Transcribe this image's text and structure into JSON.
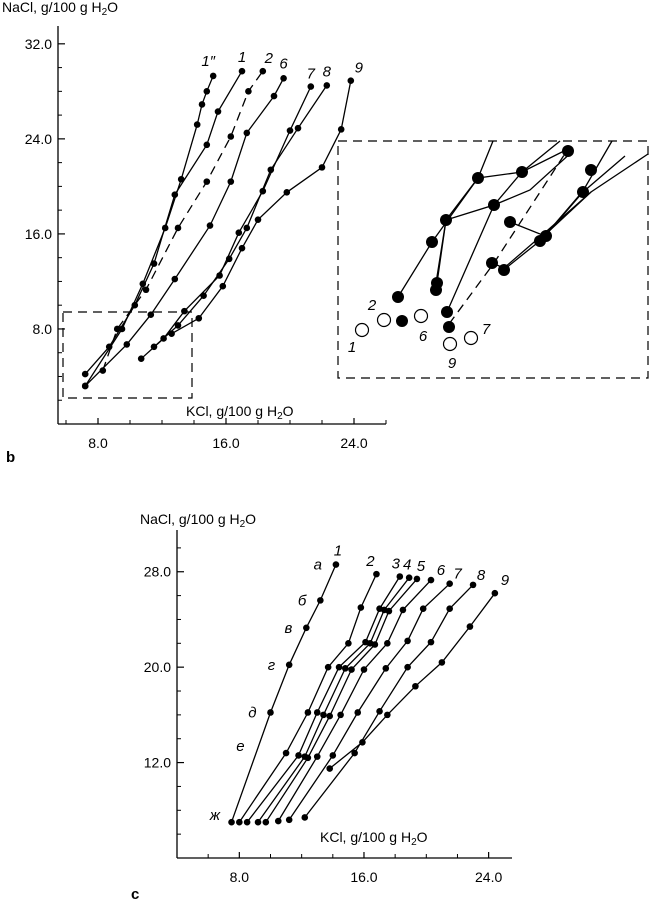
{
  "chart_data": [
    {
      "panel": "b",
      "type": "line",
      "ylabel": "NaCl, g/100 g H2O",
      "xlabel": "KCl, g/100 g H2O",
      "xlim": [
        5.5,
        26.0
      ],
      "ylim": [
        0.0,
        33.5
      ],
      "x_ticks": [
        8.0,
        16.0,
        24.0
      ],
      "y_ticks": [
        8.0,
        16.0,
        24.0,
        32.0
      ],
      "x_tick_labels": [
        "8.0",
        "16.0",
        "24.0"
      ],
      "y_tick_labels": [
        "8.0",
        "16.0",
        "24.0",
        "32.0"
      ],
      "grid": false,
      "series": [
        {
          "name": "1″",
          "style": "solid",
          "points": [
            [
              7.2,
              3.2
            ],
            [
              9.5,
              8.0
            ],
            [
              10.8,
              11.8
            ],
            [
              12.2,
              16.5
            ],
            [
              13.2,
              20.6
            ],
            [
              14.2,
              25.2
            ],
            [
              14.5,
              26.9
            ],
            [
              14.8,
              28.0
            ],
            [
              15.2,
              29.3
            ]
          ]
        },
        {
          "name": "1",
          "style": "solid",
          "points": [
            [
              7.2,
              4.2
            ],
            [
              8.7,
              6.5
            ],
            [
              10.3,
              10.0
            ],
            [
              11.5,
              13.5
            ],
            [
              12.8,
              19.3
            ],
            [
              14.8,
              23.5
            ],
            [
              15.5,
              26.3
            ],
            [
              17.0,
              29.7
            ]
          ]
        },
        {
          "name": "2",
          "style": "dashed",
          "points": [
            [
              8.3,
              4.5
            ],
            [
              9.2,
              8.0
            ],
            [
              11.0,
              11.3
            ],
            [
              13.0,
              16.5
            ],
            [
              14.8,
              20.4
            ],
            [
              16.3,
              24.2
            ],
            [
              17.4,
              28.0
            ],
            [
              18.3,
              29.7
            ]
          ]
        },
        {
          "name": "6",
          "style": "solid",
          "points": [
            [
              7.2,
              3.2
            ],
            [
              9.8,
              6.7
            ],
            [
              11.3,
              9.2
            ],
            [
              12.8,
              12.2
            ],
            [
              15.0,
              16.7
            ],
            [
              16.3,
              20.4
            ],
            [
              17.3,
              24.5
            ],
            [
              19.0,
              27.6
            ],
            [
              19.6,
              29.1
            ]
          ]
        },
        {
          "name": "7",
          "style": "solid",
          "points": [
            [
              10.7,
              5.5
            ],
            [
              12.1,
              7.2
            ],
            [
              13.4,
              9.5
            ],
            [
              15.6,
              12.5
            ],
            [
              16.8,
              16.1
            ],
            [
              18.3,
              19.6
            ],
            [
              20.0,
              24.7
            ],
            [
              21.3,
              28.4
            ]
          ]
        },
        {
          "name": "8",
          "style": "solid",
          "points": [
            [
              11.5,
              6.5
            ],
            [
              13.0,
              8.3
            ],
            [
              14.6,
              10.8
            ],
            [
              16.2,
              13.9
            ],
            [
              17.3,
              16.5
            ],
            [
              18.8,
              21.4
            ],
            [
              20.5,
              24.9
            ],
            [
              22.3,
              28.5
            ]
          ]
        },
        {
          "name": "9",
          "style": "solid",
          "points": [
            [
              12.6,
              7.6
            ],
            [
              14.3,
              8.9
            ],
            [
              15.8,
              11.6
            ],
            [
              17.0,
              14.8
            ],
            [
              18.0,
              17.2
            ],
            [
              19.8,
              19.5
            ],
            [
              22.0,
              21.6
            ],
            [
              23.2,
              24.8
            ],
            [
              23.8,
              28.9
            ]
          ]
        }
      ],
      "series_labels": [
        "1″",
        "1",
        "2",
        "6",
        "7",
        "8",
        "9"
      ],
      "inset": {
        "open_points": [
          {
            "label": "1",
            "x": 7.2,
            "y": 3.2
          },
          {
            "label": "2",
            "x": 8.3,
            "y": 4.5
          },
          {
            "label": "6",
            "x": 9.8,
            "y": 6.7
          },
          {
            "label": "9",
            "x": 11.5,
            "y": 6.5
          },
          {
            "label": "7",
            "x": 12.6,
            "y": 7.6
          }
        ]
      }
    },
    {
      "panel": "c",
      "type": "line",
      "ylabel": "NaCl, g/100 g H2O",
      "xlabel": "KCl, g/100 g H2O",
      "xlim": [
        4.0,
        25.5
      ],
      "ylim": [
        4.0,
        31.5
      ],
      "x_ticks": [
        8.0,
        16.0,
        24.0
      ],
      "y_ticks": [
        12.0,
        20.0,
        28.0
      ],
      "x_tick_labels": [
        "8.0",
        "16.0",
        "24.0"
      ],
      "y_tick_labels": [
        "12.0",
        "20.0",
        "28.0"
      ],
      "grid": false,
      "series": [
        {
          "name": "1",
          "style": "solid",
          "points": [
            [
              7.5,
              7.0
            ],
            [
              10.0,
              16.2
            ],
            [
              11.2,
              20.2
            ],
            [
              12.3,
              23.3
            ],
            [
              13.2,
              25.6
            ],
            [
              14.2,
              28.6
            ]
          ]
        },
        {
          "name": "2",
          "style": "solid",
          "points": [
            [
              8.0,
              7.0
            ],
            [
              11.0,
              12.8
            ],
            [
              12.4,
              16.2
            ],
            [
              13.7,
              20.0
            ],
            [
              15.0,
              22.0
            ],
            [
              15.8,
              25.0
            ],
            [
              16.8,
              27.8
            ]
          ]
        },
        {
          "name": "3",
          "style": "solid",
          "points": [
            [
              8.5,
              7.0
            ],
            [
              11.8,
              12.6
            ],
            [
              13.0,
              16.2
            ],
            [
              14.4,
              20.0
            ],
            [
              16.1,
              22.1
            ],
            [
              17.0,
              24.9
            ],
            [
              18.3,
              27.6
            ]
          ]
        },
        {
          "name": "4",
          "style": "solid",
          "points": [
            [
              9.2,
              7.0
            ],
            [
              12.2,
              12.5
            ],
            [
              13.4,
              16.0
            ],
            [
              14.8,
              19.9
            ],
            [
              16.4,
              22.0
            ],
            [
              17.3,
              24.8
            ],
            [
              18.9,
              27.5
            ]
          ]
        },
        {
          "name": "5",
          "style": "solid",
          "points": [
            [
              9.7,
              7.0
            ],
            [
              12.4,
              12.4
            ],
            [
              13.8,
              15.9
            ],
            [
              15.2,
              19.8
            ],
            [
              16.7,
              21.9
            ],
            [
              17.6,
              24.7
            ],
            [
              19.4,
              27.4
            ]
          ]
        },
        {
          "name": "6",
          "style": "solid",
          "points": [
            [
              10.5,
              7.1
            ],
            [
              13.0,
              12.5
            ],
            [
              14.5,
              16.0
            ],
            [
              16.0,
              19.8
            ],
            [
              17.5,
              22.0
            ],
            [
              18.5,
              24.8
            ],
            [
              20.3,
              27.3
            ]
          ]
        },
        {
          "name": "7",
          "style": "solid",
          "points": [
            [
              11.2,
              7.2
            ],
            [
              14.0,
              12.6
            ],
            [
              15.6,
              16.2
            ],
            [
              17.4,
              19.9
            ],
            [
              18.8,
              22.2
            ],
            [
              19.8,
              24.9
            ],
            [
              21.5,
              27.0
            ]
          ]
        },
        {
          "name": "8",
          "style": "solid",
          "points": [
            [
              12.2,
              7.4
            ],
            [
              15.4,
              12.8
            ],
            [
              17.0,
              16.3
            ],
            [
              18.8,
              20.0
            ],
            [
              20.3,
              22.1
            ],
            [
              21.5,
              24.9
            ],
            [
              23.0,
              26.9
            ]
          ]
        },
        {
          "name": "9",
          "style": "solid",
          "points": [
            [
              13.8,
              11.5
            ],
            [
              15.9,
              13.7
            ],
            [
              17.5,
              16.0
            ],
            [
              19.3,
              18.4
            ],
            [
              21.0,
              20.4
            ],
            [
              22.8,
              23.4
            ],
            [
              24.4,
              26.2
            ]
          ]
        }
      ],
      "series_labels": [
        "1",
        "2",
        "3",
        "4",
        "5",
        "6",
        "7",
        "8",
        "9"
      ],
      "row_labels": [
        "а",
        "б",
        "в",
        "г",
        "д",
        "е",
        "ж"
      ],
      "row_label_y": [
        28.6,
        25.6,
        23.3,
        20.2,
        16.2,
        13.4,
        7.6
      ]
    }
  ],
  "panel_letters": [
    "b",
    "c"
  ]
}
